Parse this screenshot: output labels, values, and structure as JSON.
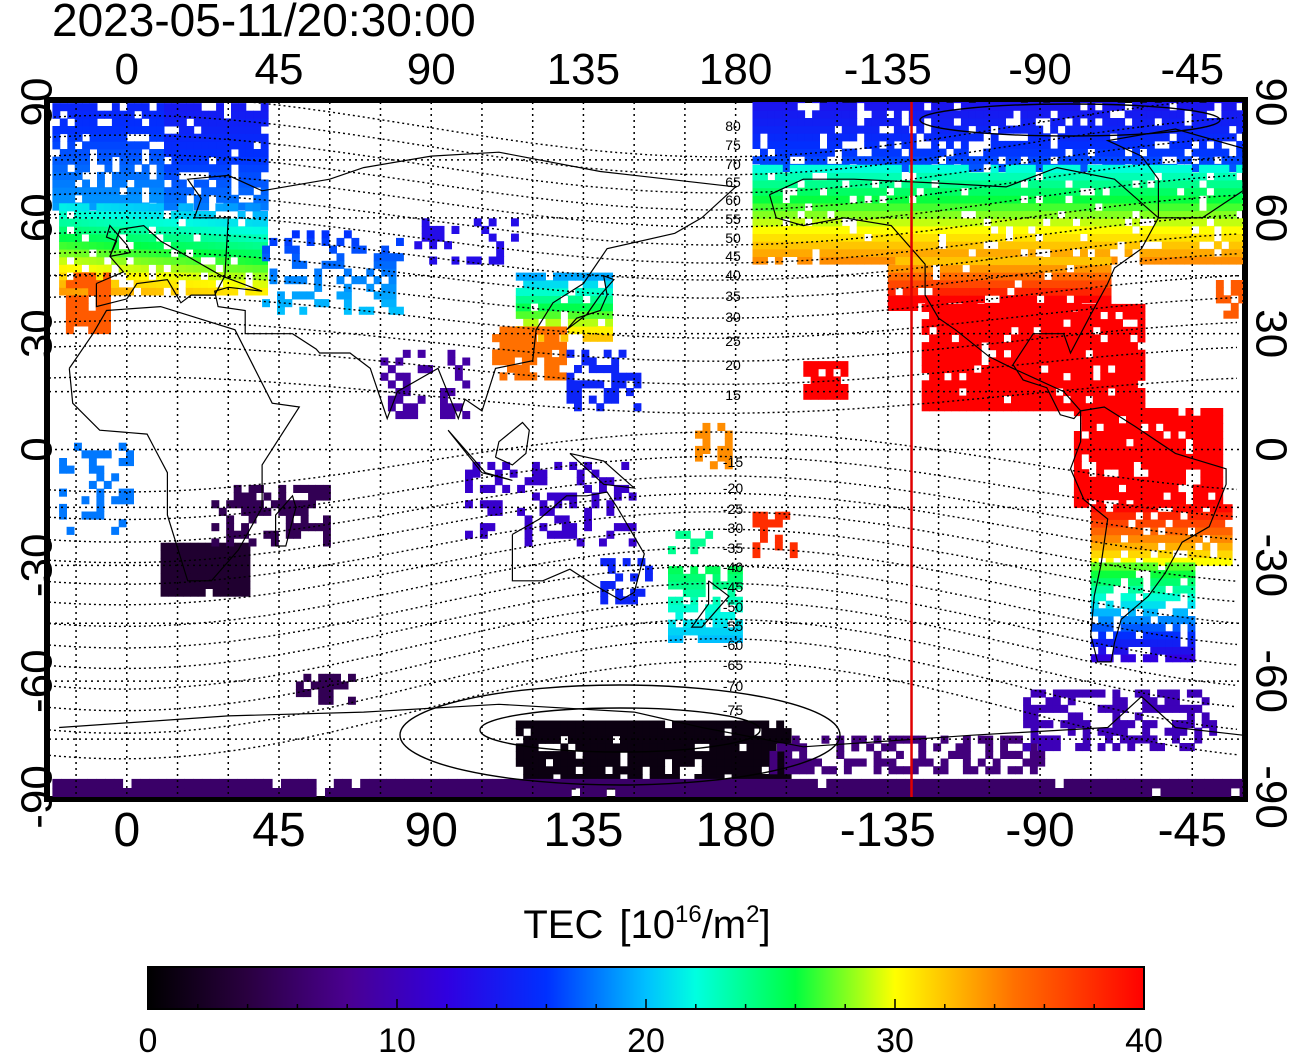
{
  "timestamp": "2023-05-11/20:30:00",
  "map": {
    "top_lon_labels": [
      "0",
      "45",
      "90",
      "135",
      "180",
      "-135",
      "-90",
      "-45"
    ],
    "bottom_lon_labels": [
      "0",
      "45",
      "90",
      "135",
      "180",
      "-135",
      "-90",
      "-45"
    ],
    "lon_tick_values": [
      0,
      45,
      90,
      135,
      180,
      225,
      270,
      315
    ],
    "left_lat_labels": [
      "90",
      "60",
      "30",
      "0",
      "-30",
      "-60",
      "-90"
    ],
    "right_lat_labels": [
      "90",
      "60",
      "30",
      "0",
      "-30",
      "-60",
      "-90"
    ],
    "lat_tick_values": [
      90,
      60,
      30,
      0,
      -30,
      -60,
      -90
    ],
    "lon_range": [
      -23,
      330
    ],
    "lat_range": [
      -90,
      90
    ],
    "grid": "dotted every 15 degrees",
    "terminator_longitude": -128,
    "terminator_color": "#e00000",
    "magnetic_lat_labels": [
      "80",
      "75",
      "70",
      "65",
      "60",
      "55",
      "50",
      "45",
      "40",
      "35",
      "30",
      "25",
      "20",
      "15",
      "-15",
      "-20",
      "-25",
      "-30",
      "-35",
      "-40",
      "-45",
      "-50",
      "-55",
      "-60",
      "-65",
      "-70",
      "-75"
    ],
    "magnetic_lat_values": [
      80,
      75,
      70,
      65,
      60,
      55,
      50,
      45,
      40,
      35,
      30,
      25,
      20,
      15,
      -15,
      -20,
      -25,
      -30,
      -35,
      -40,
      -45,
      -50,
      -55,
      -60,
      -65,
      -70,
      -75
    ]
  },
  "colorbar": {
    "title_main": "TEC",
    "title_unit_base": "[10",
    "title_unit_exp": "16",
    "title_unit_mid": "/m",
    "title_unit_exp2": "2",
    "title_unit_end": "]",
    "labels": [
      "0",
      "10",
      "20",
      "30",
      "40"
    ],
    "values": [
      0,
      10,
      20,
      30,
      40
    ],
    "colors": [
      "#000000",
      "#3a0050",
      "#5000a0",
      "#0000ff",
      "#0080ff",
      "#00ffff",
      "#00ff80",
      "#00ff00",
      "#ffff00",
      "#ff8000",
      "#ff0000"
    ]
  }
}
